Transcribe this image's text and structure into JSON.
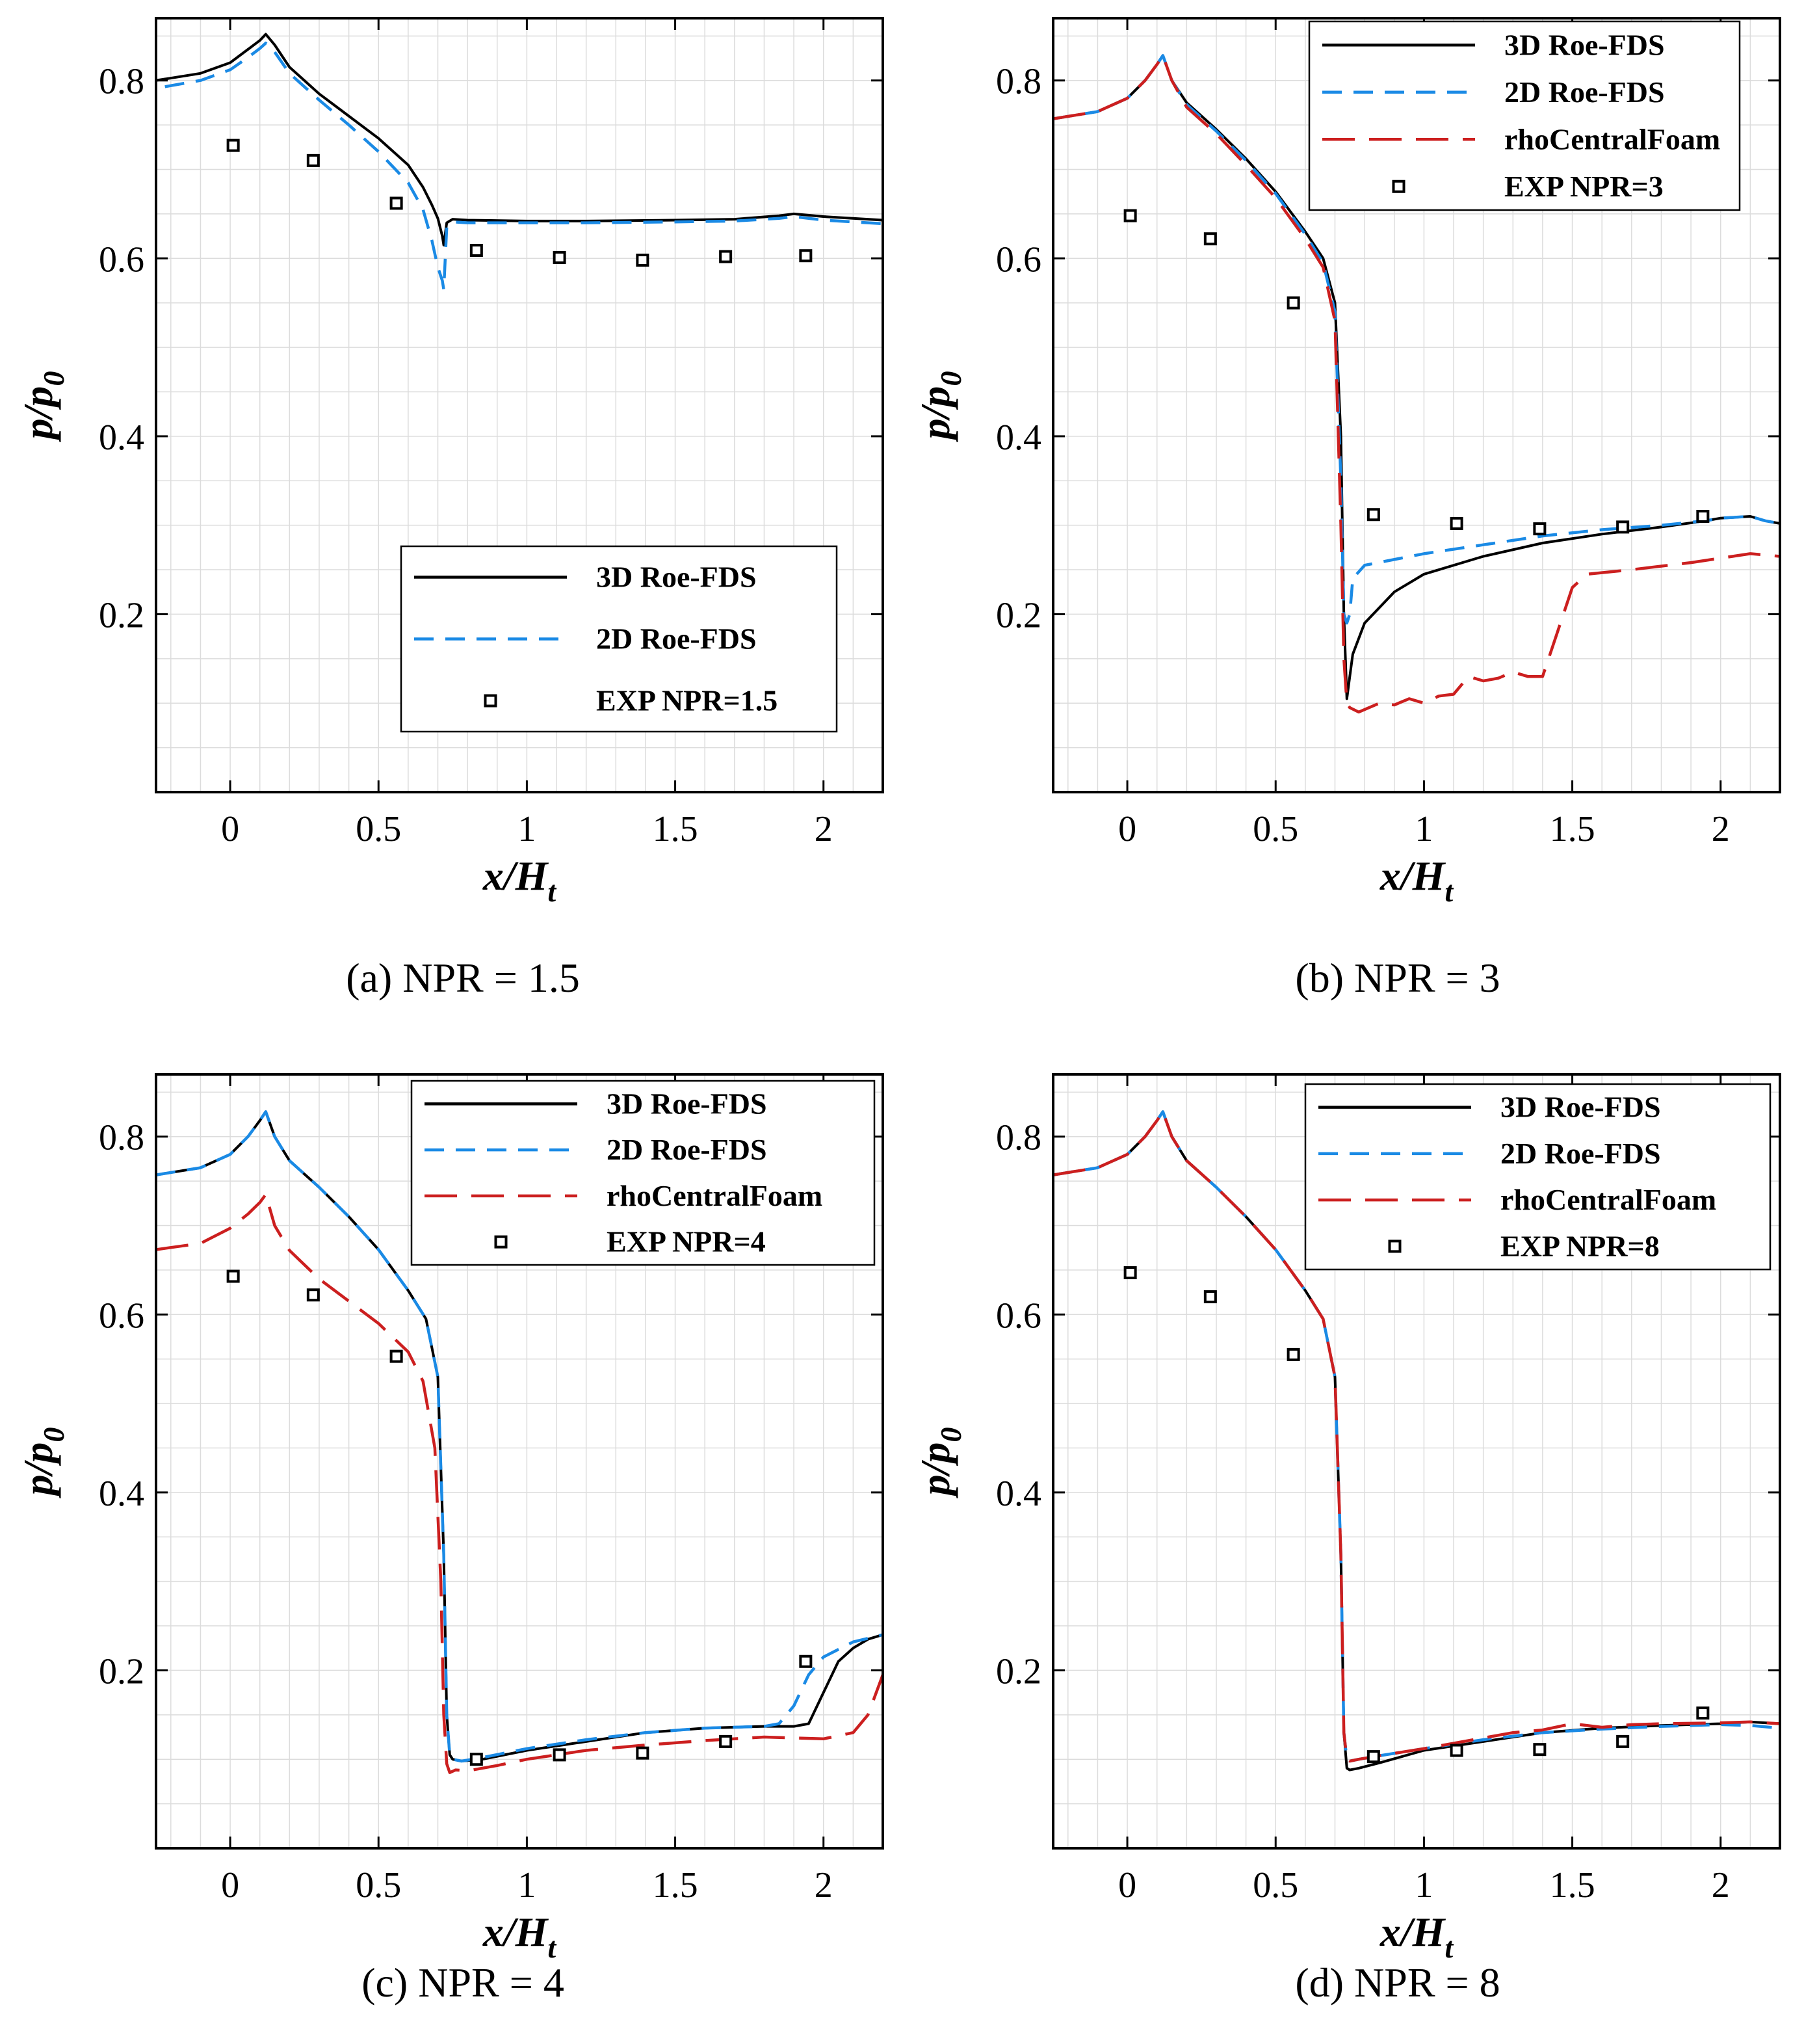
{
  "figure": {
    "colors": {
      "black": "#000000",
      "blue": "#1a8ae5",
      "red": "#cc1f1f",
      "grid": "#dcdcdc"
    }
  },
  "chart_data": [
    {
      "type": "line",
      "caption": "(a) NPR = 1.5",
      "xlabel": "x/H",
      "xlabel_sub": "t",
      "ylabel": "p/p",
      "ylabel_sub": "0",
      "xlim": [
        -0.25,
        2.2
      ],
      "ylim": [
        0.0,
        0.87
      ],
      "xticks": [
        0,
        0.5,
        1,
        1.5,
        2
      ],
      "xtick_labels": [
        "0",
        "0.5",
        "1",
        "1.5",
        "2"
      ],
      "yticks": [
        0.2,
        0.4,
        0.6,
        0.8
      ],
      "ytick_labels": [
        "0.2",
        "0.4",
        "0.6",
        "0.8"
      ],
      "legend_position": "bottom-right",
      "series": [
        {
          "name": "3D Roe-FDS",
          "style": "solid",
          "color": "#000000",
          "x": [
            -0.25,
            -0.1,
            0.0,
            0.06,
            0.1,
            0.12,
            0.15,
            0.2,
            0.3,
            0.4,
            0.5,
            0.6,
            0.65,
            0.68,
            0.7,
            0.715,
            0.72,
            0.73,
            0.75,
            0.8,
            1.0,
            1.2,
            1.5,
            1.7,
            1.85,
            1.9,
            2.0,
            2.2
          ],
          "y": [
            0.8,
            0.808,
            0.82,
            0.835,
            0.845,
            0.852,
            0.84,
            0.815,
            0.785,
            0.76,
            0.735,
            0.705,
            0.68,
            0.66,
            0.645,
            0.625,
            0.615,
            0.64,
            0.644,
            0.643,
            0.642,
            0.642,
            0.643,
            0.644,
            0.648,
            0.65,
            0.647,
            0.643
          ]
        },
        {
          "name": "2D Roe-FDS",
          "style": "dashed",
          "color": "#1a8ae5",
          "x": [
            -0.22,
            -0.1,
            0.0,
            0.06,
            0.1,
            0.12,
            0.15,
            0.2,
            0.3,
            0.4,
            0.5,
            0.6,
            0.65,
            0.68,
            0.7,
            0.715,
            0.72,
            0.73,
            0.75,
            0.8,
            1.0,
            1.2,
            1.5,
            1.7,
            1.85,
            1.9,
            2.0,
            2.2
          ],
          "y": [
            0.793,
            0.8,
            0.812,
            0.826,
            0.836,
            0.842,
            0.832,
            0.808,
            0.778,
            0.75,
            0.72,
            0.685,
            0.655,
            0.62,
            0.59,
            0.575,
            0.565,
            0.635,
            0.641,
            0.64,
            0.64,
            0.64,
            0.641,
            0.642,
            0.645,
            0.647,
            0.643,
            0.639
          ]
        }
      ],
      "markers": {
        "name": "EXP NPR=1.5",
        "x": [
          0.01,
          0.28,
          0.56,
          0.83,
          1.11,
          1.39,
          1.67,
          1.94
        ],
        "y": [
          0.727,
          0.71,
          0.662,
          0.609,
          0.601,
          0.598,
          0.602,
          0.603
        ]
      }
    },
    {
      "type": "line",
      "caption": "(b) NPR = 3",
      "xlabel": "x/H",
      "xlabel_sub": "t",
      "ylabel": "p/p",
      "ylabel_sub": "0",
      "xlim": [
        -0.25,
        2.2
      ],
      "ylim": [
        0.0,
        0.87
      ],
      "xticks": [
        0,
        0.5,
        1,
        1.5,
        2
      ],
      "xtick_labels": [
        "0",
        "0.5",
        "1",
        "1.5",
        "2"
      ],
      "yticks": [
        0.2,
        0.4,
        0.6,
        0.8
      ],
      "ytick_labels": [
        "0.2",
        "0.4",
        "0.6",
        "0.8"
      ],
      "legend_position": "top-right",
      "series": [
        {
          "name": "3D Roe-FDS",
          "style": "solid",
          "color": "#000000",
          "x": [
            -0.25,
            -0.1,
            0.0,
            0.06,
            0.1,
            0.12,
            0.15,
            0.2,
            0.3,
            0.4,
            0.5,
            0.6,
            0.66,
            0.7,
            0.72,
            0.73,
            0.74,
            0.75,
            0.76,
            0.8,
            0.9,
            1.0,
            1.2,
            1.4,
            1.6,
            1.8,
            1.95,
            2.0,
            2.1,
            2.15,
            2.2
          ],
          "y": [
            0.757,
            0.765,
            0.78,
            0.8,
            0.818,
            0.828,
            0.8,
            0.775,
            0.745,
            0.712,
            0.675,
            0.63,
            0.6,
            0.55,
            0.4,
            0.2,
            0.105,
            0.13,
            0.155,
            0.19,
            0.225,
            0.245,
            0.265,
            0.28,
            0.29,
            0.298,
            0.305,
            0.308,
            0.31,
            0.305,
            0.302
          ]
        },
        {
          "name": "2D Roe-FDS",
          "style": "dashed",
          "color": "#1a8ae5",
          "x": [
            -0.25,
            -0.1,
            0.0,
            0.06,
            0.1,
            0.12,
            0.15,
            0.2,
            0.3,
            0.4,
            0.5,
            0.6,
            0.66,
            0.7,
            0.72,
            0.73,
            0.74,
            0.75,
            0.76,
            0.8,
            1.0,
            1.2,
            1.4,
            1.6,
            1.8,
            1.95,
            2.0,
            2.1,
            2.15,
            2.2
          ],
          "y": [
            0.757,
            0.765,
            0.78,
            0.8,
            0.818,
            0.828,
            0.8,
            0.773,
            0.743,
            0.71,
            0.673,
            0.627,
            0.595,
            0.54,
            0.35,
            0.2,
            0.19,
            0.2,
            0.24,
            0.255,
            0.268,
            0.278,
            0.288,
            0.295,
            0.3,
            0.305,
            0.308,
            0.31,
            0.305,
            0.302
          ]
        },
        {
          "name": "rhoCentralFoam",
          "style": "longdash",
          "color": "#cc1f1f",
          "x": [
            -0.25,
            -0.1,
            0.0,
            0.06,
            0.1,
            0.12,
            0.15,
            0.2,
            0.3,
            0.4,
            0.5,
            0.6,
            0.66,
            0.7,
            0.72,
            0.73,
            0.74,
            0.75,
            0.78,
            0.85,
            0.9,
            0.95,
            1.0,
            1.05,
            1.1,
            1.15,
            1.2,
            1.25,
            1.3,
            1.35,
            1.4,
            1.45,
            1.5,
            1.55,
            1.7,
            1.9,
            2.1,
            2.2
          ],
          "y": [
            0.757,
            0.765,
            0.78,
            0.8,
            0.818,
            0.828,
            0.8,
            0.77,
            0.74,
            0.705,
            0.668,
            0.622,
            0.59,
            0.53,
            0.3,
            0.15,
            0.1,
            0.095,
            0.09,
            0.1,
            0.098,
            0.105,
            0.1,
            0.108,
            0.11,
            0.13,
            0.125,
            0.128,
            0.135,
            0.13,
            0.13,
            0.18,
            0.23,
            0.245,
            0.25,
            0.258,
            0.268,
            0.265
          ]
        }
      ],
      "markers": {
        "name": "EXP NPR=3",
        "x": [
          0.01,
          0.28,
          0.56,
          0.83,
          1.11,
          1.39,
          1.67,
          1.94
        ],
        "y": [
          0.648,
          0.622,
          0.55,
          0.312,
          0.302,
          0.296,
          0.298,
          0.31
        ]
      }
    },
    {
      "type": "line",
      "caption": "(c) NPR = 4",
      "xlabel": "x/H",
      "xlabel_sub": "t",
      "ylabel": "p/p",
      "ylabel_sub": "0",
      "xlim": [
        -0.25,
        2.2
      ],
      "ylim": [
        0.0,
        0.87
      ],
      "xticks": [
        0,
        0.5,
        1,
        1.5,
        2
      ],
      "xtick_labels": [
        "0",
        "0.5",
        "1",
        "1.5",
        "2"
      ],
      "yticks": [
        0.2,
        0.4,
        0.6,
        0.8
      ],
      "ytick_labels": [
        "0.2",
        "0.4",
        "0.6",
        "0.8"
      ],
      "legend_position": "top-right",
      "series": [
        {
          "name": "3D Roe-FDS",
          "style": "solid",
          "color": "#000000",
          "x": [
            -0.25,
            -0.1,
            0.0,
            0.06,
            0.1,
            0.12,
            0.15,
            0.2,
            0.3,
            0.4,
            0.5,
            0.6,
            0.66,
            0.7,
            0.72,
            0.73,
            0.74,
            0.75,
            0.78,
            0.85,
            1.0,
            1.2,
            1.4,
            1.6,
            1.8,
            1.9,
            1.95,
            2.0,
            2.05,
            2.1,
            2.15,
            2.2
          ],
          "y": [
            0.757,
            0.765,
            0.78,
            0.8,
            0.818,
            0.828,
            0.8,
            0.773,
            0.743,
            0.71,
            0.673,
            0.627,
            0.595,
            0.53,
            0.33,
            0.15,
            0.105,
            0.1,
            0.098,
            0.1,
            0.11,
            0.12,
            0.13,
            0.135,
            0.137,
            0.137,
            0.14,
            0.175,
            0.21,
            0.225,
            0.235,
            0.24
          ]
        },
        {
          "name": "2D Roe-FDS",
          "style": "dashed",
          "color": "#1a8ae5",
          "x": [
            -0.25,
            -0.1,
            0.0,
            0.06,
            0.1,
            0.12,
            0.15,
            0.2,
            0.3,
            0.4,
            0.5,
            0.6,
            0.66,
            0.7,
            0.72,
            0.73,
            0.74,
            0.75,
            0.78,
            0.85,
            1.0,
            1.2,
            1.4,
            1.6,
            1.8,
            1.85,
            1.9,
            1.95,
            2.0,
            2.1,
            2.2
          ],
          "y": [
            0.757,
            0.765,
            0.78,
            0.8,
            0.818,
            0.828,
            0.8,
            0.773,
            0.743,
            0.71,
            0.673,
            0.627,
            0.595,
            0.53,
            0.33,
            0.15,
            0.105,
            0.1,
            0.098,
            0.102,
            0.112,
            0.122,
            0.13,
            0.135,
            0.137,
            0.14,
            0.16,
            0.195,
            0.215,
            0.232,
            0.24
          ]
        },
        {
          "name": "rhoCentralFoam",
          "style": "longdash",
          "color": "#cc1f1f",
          "x": [
            -0.25,
            -0.1,
            0.0,
            0.06,
            0.1,
            0.12,
            0.15,
            0.2,
            0.3,
            0.4,
            0.5,
            0.6,
            0.65,
            0.69,
            0.71,
            0.72,
            0.73,
            0.74,
            0.76,
            0.8,
            0.9,
            1.0,
            1.2,
            1.4,
            1.6,
            1.8,
            2.0,
            2.1,
            2.15,
            2.2
          ],
          "y": [
            0.673,
            0.68,
            0.697,
            0.713,
            0.726,
            0.735,
            0.7,
            0.672,
            0.64,
            0.615,
            0.59,
            0.558,
            0.525,
            0.45,
            0.3,
            0.15,
            0.095,
            0.085,
            0.088,
            0.087,
            0.093,
            0.1,
            0.11,
            0.116,
            0.121,
            0.125,
            0.123,
            0.13,
            0.15,
            0.195
          ]
        }
      ],
      "markers": {
        "name": "EXP NPR=4",
        "x": [
          0.01,
          0.28,
          0.56,
          0.83,
          1.11,
          1.39,
          1.67,
          1.94
        ],
        "y": [
          0.643,
          0.622,
          0.553,
          0.1,
          0.105,
          0.107,
          0.12,
          0.21
        ]
      }
    },
    {
      "type": "line",
      "caption": "(d) NPR = 8",
      "xlabel": "x/H",
      "xlabel_sub": "t",
      "ylabel": "p/p",
      "ylabel_sub": "0",
      "xlim": [
        -0.25,
        2.2
      ],
      "ylim": [
        0.0,
        0.87
      ],
      "xticks": [
        0,
        0.5,
        1,
        1.5,
        2
      ],
      "xtick_labels": [
        "0",
        "0.5",
        "1",
        "1.5",
        "2"
      ],
      "yticks": [
        0.2,
        0.4,
        0.6,
        0.8
      ],
      "ytick_labels": [
        "0.2",
        "0.4",
        "0.6",
        "0.8"
      ],
      "legend_position": "top-right",
      "series": [
        {
          "name": "3D Roe-FDS",
          "style": "solid",
          "color": "#000000",
          "x": [
            -0.25,
            -0.1,
            0.0,
            0.06,
            0.1,
            0.12,
            0.15,
            0.2,
            0.3,
            0.4,
            0.5,
            0.6,
            0.66,
            0.7,
            0.72,
            0.73,
            0.74,
            0.75,
            0.78,
            0.85,
            1.0,
            1.2,
            1.4,
            1.6,
            1.8,
            2.0,
            2.1,
            2.2
          ],
          "y": [
            0.757,
            0.765,
            0.78,
            0.8,
            0.818,
            0.828,
            0.8,
            0.773,
            0.743,
            0.71,
            0.673,
            0.627,
            0.595,
            0.53,
            0.33,
            0.13,
            0.09,
            0.088,
            0.09,
            0.096,
            0.11,
            0.12,
            0.13,
            0.135,
            0.138,
            0.14,
            0.142,
            0.14
          ]
        },
        {
          "name": "2D Roe-FDS",
          "style": "dashed",
          "color": "#1a8ae5",
          "x": [
            -0.25,
            -0.1,
            0.0,
            0.06,
            0.1,
            0.12,
            0.15,
            0.2,
            0.3,
            0.4,
            0.5,
            0.6,
            0.66,
            0.7,
            0.72,
            0.73,
            0.74,
            0.75,
            0.78,
            0.85,
            1.0,
            1.2,
            1.4,
            1.6,
            1.8,
            2.0,
            2.1,
            2.2
          ],
          "y": [
            0.757,
            0.765,
            0.78,
            0.8,
            0.818,
            0.828,
            0.8,
            0.773,
            0.743,
            0.71,
            0.673,
            0.627,
            0.595,
            0.53,
            0.33,
            0.13,
            0.1,
            0.098,
            0.1,
            0.104,
            0.112,
            0.122,
            0.13,
            0.134,
            0.137,
            0.139,
            0.138,
            0.135
          ]
        },
        {
          "name": "rhoCentralFoam",
          "style": "longdash",
          "color": "#cc1f1f",
          "x": [
            -0.25,
            -0.1,
            0.0,
            0.06,
            0.1,
            0.12,
            0.15,
            0.2,
            0.3,
            0.4,
            0.5,
            0.6,
            0.66,
            0.7,
            0.72,
            0.73,
            0.74,
            0.75,
            0.78,
            0.85,
            1.0,
            1.1,
            1.2,
            1.3,
            1.4,
            1.5,
            1.6,
            1.7,
            1.8,
            2.0,
            2.1,
            2.2
          ],
          "y": [
            0.757,
            0.765,
            0.78,
            0.8,
            0.818,
            0.828,
            0.8,
            0.773,
            0.743,
            0.71,
            0.673,
            0.627,
            0.595,
            0.53,
            0.33,
            0.13,
            0.1,
            0.098,
            0.1,
            0.104,
            0.112,
            0.118,
            0.124,
            0.13,
            0.133,
            0.14,
            0.136,
            0.139,
            0.14,
            0.141,
            0.142,
            0.14
          ]
        }
      ],
      "markers": {
        "name": "EXP NPR=8",
        "x": [
          0.01,
          0.28,
          0.56,
          0.83,
          1.11,
          1.39,
          1.67,
          1.94
        ],
        "y": [
          0.647,
          0.62,
          0.555,
          0.103,
          0.11,
          0.111,
          0.12,
          0.152
        ]
      }
    }
  ]
}
